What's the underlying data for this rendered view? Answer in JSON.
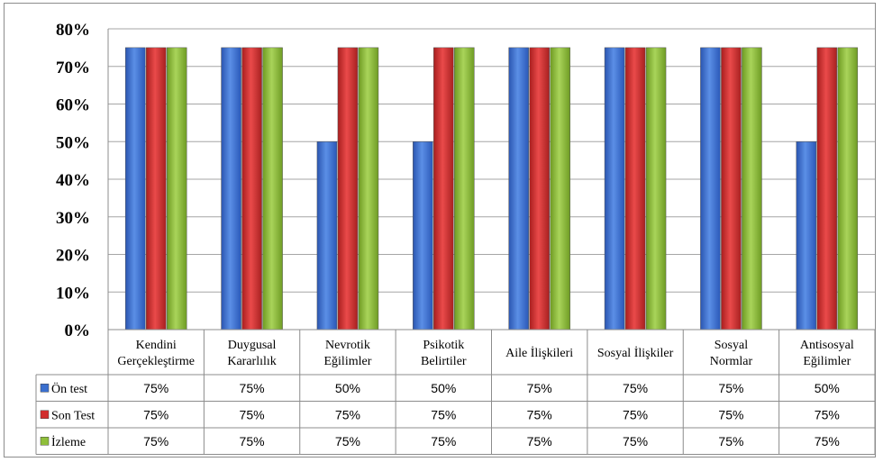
{
  "chart_data": {
    "type": "bar",
    "categories": [
      [
        "Kendini",
        "Gerçekleştirme"
      ],
      [
        "Duygusal",
        "Kararlılık"
      ],
      [
        "Nevrotik",
        "Eğilimler"
      ],
      [
        "Psikotik",
        "Belirtiler"
      ],
      [
        "Aile İlişkileri"
      ],
      [
        "Sosyal İlişkiler"
      ],
      [
        "Sosyal",
        "Normlar"
      ],
      [
        "Antisosyal",
        "Eğilimler"
      ]
    ],
    "series": [
      {
        "name": "Ön test",
        "color": "#3a6fcf",
        "values": [
          75,
          75,
          50,
          50,
          75,
          75,
          75,
          50
        ],
        "labels": [
          "75%",
          "75%",
          "50%",
          "50%",
          "75%",
          "75%",
          "75%",
          "50%"
        ]
      },
      {
        "name": "Son Test",
        "color": "#d22c2c",
        "values": [
          75,
          75,
          75,
          75,
          75,
          75,
          75,
          75
        ],
        "labels": [
          "75%",
          "75%",
          "75%",
          "75%",
          "75%",
          "75%",
          "75%",
          "75%"
        ]
      },
      {
        "name": "İzleme",
        "color": "#8fbf3a",
        "values": [
          75,
          75,
          75,
          75,
          75,
          75,
          75,
          75
        ],
        "labels": [
          "75%",
          "75%",
          "75%",
          "75%",
          "75%",
          "75%",
          "75%",
          "75%"
        ]
      }
    ],
    "ylim": [
      0,
      80
    ],
    "yticks": [
      "0%",
      "10%",
      "20%",
      "30%",
      "40%",
      "50%",
      "60%",
      "70%",
      "80%"
    ],
    "grid": true,
    "legend": "data-table"
  }
}
